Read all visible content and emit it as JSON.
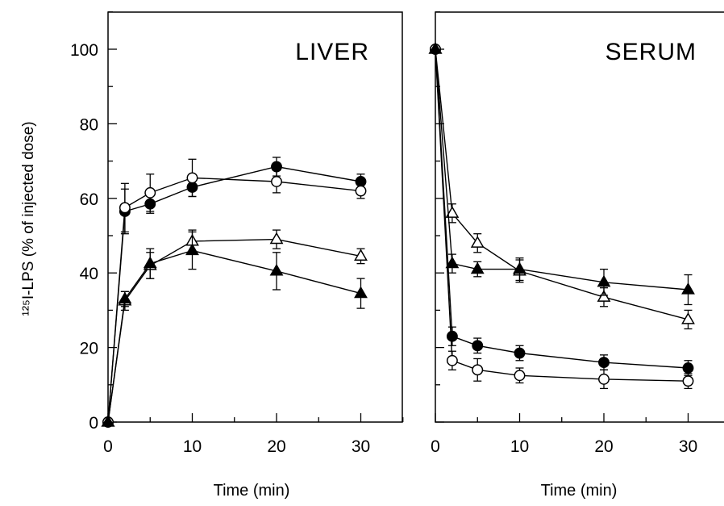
{
  "chart_data": [
    {
      "type": "line",
      "title": "LIVER",
      "xlabel": "Time (min)",
      "ylabel": "¹²⁵I-LPS (% of injected dose)",
      "xlim": [
        0,
        35
      ],
      "ylim": [
        0,
        110
      ],
      "xticks": [
        0,
        10,
        20,
        30
      ],
      "yticks": [
        0,
        20,
        40,
        60,
        80,
        100
      ],
      "grid": false,
      "legend": "none",
      "series": [
        {
          "marker": "circle-filled",
          "x": [
            0,
            2,
            5,
            10,
            20,
            30
          ],
          "y": [
            0,
            56.5,
            58.5,
            63,
            68.5,
            64.5
          ],
          "err": [
            0,
            6,
            2.5,
            2.5,
            2.5,
            2
          ]
        },
        {
          "marker": "circle-open",
          "x": [
            0,
            2,
            5,
            10,
            20,
            30
          ],
          "y": [
            0,
            57.5,
            61.5,
            65.5,
            64.5,
            62
          ],
          "err": [
            0,
            6.5,
            5,
            5,
            3,
            2
          ]
        },
        {
          "marker": "triangle-open",
          "x": [
            0,
            2,
            5,
            10,
            20,
            30
          ],
          "y": [
            0,
            32.5,
            42,
            48.5,
            49,
            44.5
          ],
          "err": [
            0,
            2.5,
            3.5,
            3,
            2.5,
            2
          ]
        },
        {
          "marker": "triangle-filled",
          "x": [
            0,
            2,
            5,
            10,
            20,
            30
          ],
          "y": [
            0,
            33,
            42.5,
            46,
            40.5,
            34.5
          ],
          "err": [
            0,
            2,
            4,
            5,
            5,
            4
          ]
        }
      ]
    },
    {
      "type": "line",
      "title": "SERUM",
      "xlabel": "Time (min)",
      "ylabel": "",
      "xlim": [
        0,
        35
      ],
      "ylim": [
        0,
        110
      ],
      "xticks": [
        0,
        10,
        20,
        30
      ],
      "yticks": [
        0,
        20,
        40,
        60,
        80,
        100
      ],
      "grid": false,
      "legend": "none",
      "series": [
        {
          "marker": "circle-filled",
          "x": [
            0,
            2,
            5,
            10,
            20,
            30
          ],
          "y": [
            100,
            23,
            20.5,
            18.5,
            16,
            14.5
          ],
          "err": [
            0,
            2.5,
            2,
            2,
            2,
            2
          ]
        },
        {
          "marker": "circle-open",
          "x": [
            0,
            2,
            5,
            10,
            20,
            30
          ],
          "y": [
            100,
            16.5,
            14,
            12.5,
            11.5,
            11
          ],
          "err": [
            0,
            2.5,
            3,
            2,
            2.5,
            2
          ]
        },
        {
          "marker": "triangle-open",
          "x": [
            0,
            2,
            5,
            10,
            20,
            30
          ],
          "y": [
            100,
            56,
            48,
            40.5,
            33.5,
            27.5
          ],
          "err": [
            0,
            2.5,
            2.5,
            3,
            2.5,
            2.5
          ]
        },
        {
          "marker": "triangle-filled",
          "x": [
            0,
            2,
            5,
            10,
            20,
            30
          ],
          "y": [
            100,
            42.5,
            41,
            41,
            37.5,
            35.5
          ],
          "err": [
            0,
            2.5,
            2,
            3,
            3.5,
            4
          ]
        }
      ]
    }
  ]
}
